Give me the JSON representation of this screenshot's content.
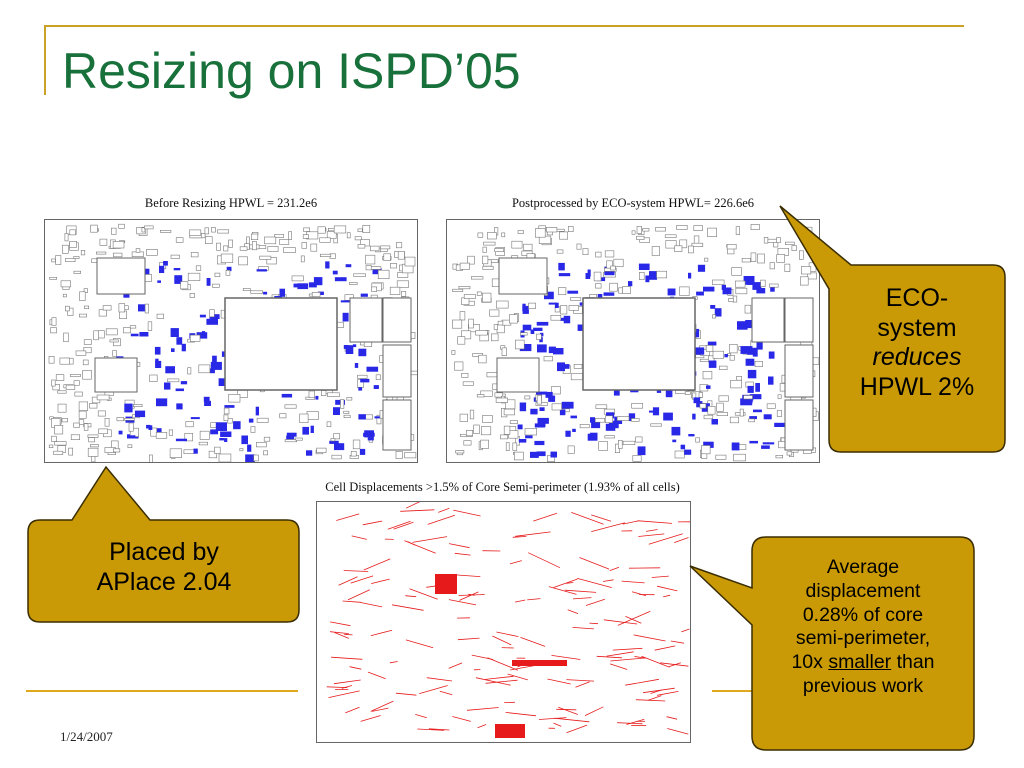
{
  "slide": {
    "title": "Resizing on ISPD’05",
    "date": "1/24/2007"
  },
  "figures": {
    "before_caption": "Before Resizing HPWL = 231.2e6",
    "after_caption": "Postprocessed by ECO-system HPWL= 226.6e6",
    "displacement_caption": "Cell Displacements >1.5% of Core Semi-perimeter (1.93% of all cells)"
  },
  "callouts": {
    "eco": {
      "line1": "ECO-",
      "line2": "system",
      "line3": "reduces",
      "line4": "HPWL 2%"
    },
    "aplace": {
      "line1": "Placed by",
      "line2": "APlace 2.04"
    },
    "displacement": {
      "line1": "Average",
      "line2": "displacement",
      "line3": "0.28% of core",
      "line4": "semi-perimeter,",
      "line5_prefix": "10x ",
      "line5_underlined": "smaller",
      "line5_suffix": " than",
      "line6": "previous work"
    }
  },
  "colors": {
    "title": "#18703a",
    "frame": "#c9a227",
    "callout_fill": "#c99a06",
    "callout_border": "#3a2d00",
    "placement_blue": "#2828e6",
    "displacement_red": "#e61a1a"
  }
}
